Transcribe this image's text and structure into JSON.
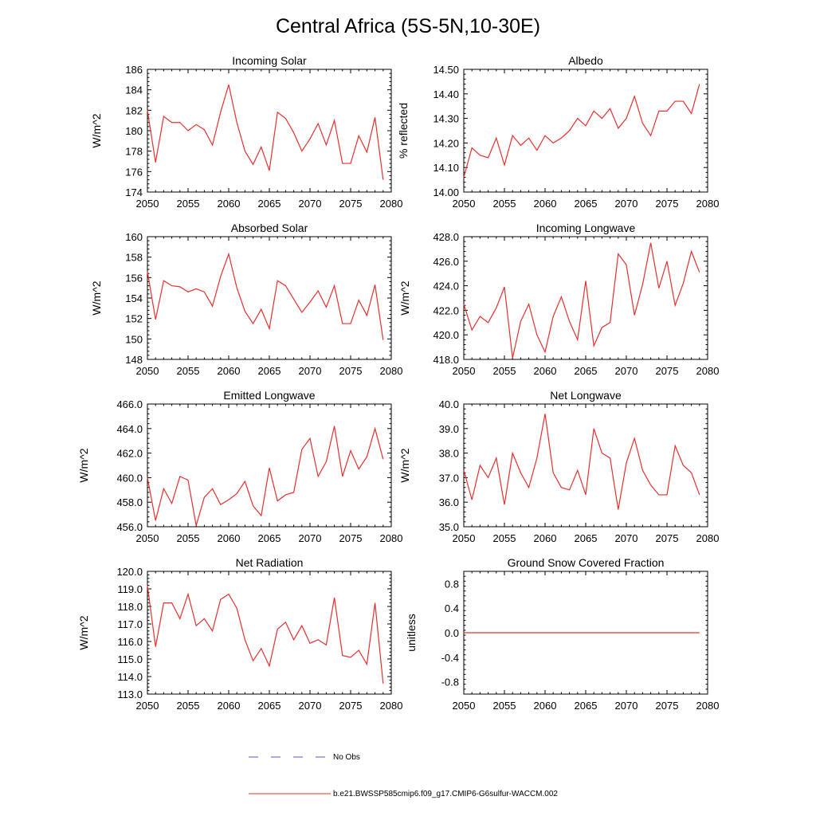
{
  "figure": {
    "title": "Central Africa (5S-5N,10-30E)",
    "legend": [
      {
        "label": "No Obs",
        "color": "#5555cc",
        "dash": true
      },
      {
        "label": "b.e21.BWSSP585cmip6.f09_g17.CMIP6-G6sulfur-WACCM.002",
        "color": "#e6302f",
        "dash": false
      }
    ]
  },
  "chart_data": [
    {
      "type": "line",
      "title": "Incoming Solar",
      "ylabel": "W/m^2",
      "xlim": [
        2050,
        2080
      ],
      "ylim": [
        174,
        186
      ],
      "xticks": [
        2050,
        2055,
        2060,
        2065,
        2070,
        2075,
        2080
      ],
      "yticks": [
        "174",
        "176",
        "178",
        "180",
        "182",
        "184",
        "186"
      ],
      "series": [
        {
          "color": "#e6302f",
          "x_start": 2050,
          "values": [
            182.0,
            176.9,
            181.4,
            180.8,
            180.8,
            180.0,
            180.6,
            180.1,
            178.6,
            181.8,
            184.5,
            180.8,
            178.0,
            176.7,
            178.4,
            176.1,
            181.8,
            181.2,
            179.8,
            178.0,
            179.2,
            180.7,
            178.6,
            181.0,
            176.8,
            176.8,
            179.5,
            177.9,
            181.3,
            175.2
          ]
        }
      ]
    },
    {
      "type": "line",
      "title": "Albedo",
      "ylabel": "% reflected",
      "xlim": [
        2050,
        2080
      ],
      "ylim": [
        14.0,
        14.5
      ],
      "xticks": [
        2050,
        2055,
        2060,
        2065,
        2070,
        2075,
        2080
      ],
      "yticks": [
        "14.00",
        "14.10",
        "14.20",
        "14.30",
        "14.40",
        "14.50"
      ],
      "series": [
        {
          "color": "#e6302f",
          "x_start": 2050,
          "values": [
            14.06,
            14.18,
            14.15,
            14.14,
            14.22,
            14.11,
            14.23,
            14.19,
            14.22,
            14.17,
            14.23,
            14.2,
            14.22,
            14.25,
            14.3,
            14.27,
            14.33,
            14.3,
            14.34,
            14.26,
            14.3,
            14.39,
            14.28,
            14.23,
            14.33,
            14.33,
            14.37,
            14.37,
            14.32,
            14.44
          ]
        }
      ]
    },
    {
      "type": "line",
      "title": "Absorbed Solar",
      "ylabel": "W/m^2",
      "xlim": [
        2050,
        2080
      ],
      "ylim": [
        148,
        160
      ],
      "xticks": [
        2050,
        2055,
        2060,
        2065,
        2070,
        2075,
        2080
      ],
      "yticks": [
        "148",
        "150",
        "152",
        "154",
        "156",
        "158",
        "160"
      ],
      "series": [
        {
          "color": "#e6302f",
          "x_start": 2050,
          "values": [
            156.6,
            151.9,
            155.7,
            155.2,
            155.1,
            154.6,
            154.9,
            154.6,
            153.2,
            156.1,
            158.3,
            155.0,
            152.7,
            151.5,
            152.9,
            151.0,
            155.7,
            155.2,
            153.9,
            152.6,
            153.6,
            154.7,
            153.1,
            155.2,
            151.5,
            151.5,
            153.8,
            152.3,
            155.3,
            149.9
          ]
        }
      ]
    },
    {
      "type": "line",
      "title": "Incoming Longwave",
      "ylabel": "W/m^2",
      "xlim": [
        2050,
        2080
      ],
      "ylim": [
        418.0,
        428.0
      ],
      "xticks": [
        2050,
        2055,
        2060,
        2065,
        2070,
        2075,
        2080
      ],
      "yticks": [
        "418.0",
        "420.0",
        "422.0",
        "424.0",
        "426.0",
        "428.0"
      ],
      "series": [
        {
          "color": "#e6302f",
          "x_start": 2050,
          "values": [
            422.5,
            420.4,
            421.5,
            421.0,
            422.2,
            423.9,
            418.1,
            421.1,
            422.5,
            420.0,
            418.6,
            421.5,
            423.1,
            421.1,
            419.6,
            424.4,
            419.1,
            420.6,
            421.0,
            426.6,
            425.7,
            421.6,
            424.1,
            427.5,
            423.8,
            426.0,
            422.4,
            424.2,
            426.8,
            425.1
          ]
        }
      ]
    },
    {
      "type": "line",
      "title": "Emitted Longwave",
      "ylabel": "W/m^2",
      "xlim": [
        2050,
        2080
      ],
      "ylim": [
        456.0,
        466.0
      ],
      "xticks": [
        2050,
        2055,
        2060,
        2065,
        2070,
        2075,
        2080
      ],
      "yticks": [
        "456.0",
        "458.0",
        "460.0",
        "462.0",
        "464.0",
        "466.0"
      ],
      "series": [
        {
          "color": "#e6302f",
          "x_start": 2050,
          "values": [
            460.0,
            456.5,
            459.1,
            457.9,
            460.1,
            459.8,
            456.1,
            458.4,
            459.1,
            457.8,
            458.2,
            458.7,
            459.7,
            457.7,
            456.9,
            460.8,
            458.1,
            458.6,
            458.8,
            462.3,
            463.2,
            460.1,
            461.3,
            464.2,
            460.1,
            462.2,
            460.7,
            461.7,
            464.0,
            461.5
          ]
        }
      ]
    },
    {
      "type": "line",
      "title": "Net Longwave",
      "ylabel": "W/m^2",
      "xlim": [
        2050,
        2080
      ],
      "ylim": [
        35.0,
        40.0
      ],
      "xticks": [
        2050,
        2055,
        2060,
        2065,
        2070,
        2075,
        2080
      ],
      "yticks": [
        "35.0",
        "36.0",
        "37.0",
        "38.0",
        "39.0",
        "40.0"
      ],
      "series": [
        {
          "color": "#e6302f",
          "x_start": 2050,
          "values": [
            37.3,
            36.1,
            37.5,
            37.0,
            37.8,
            35.9,
            38.0,
            37.2,
            36.6,
            37.8,
            39.6,
            37.2,
            36.6,
            36.5,
            37.3,
            36.3,
            39.0,
            38.0,
            37.8,
            35.7,
            37.6,
            38.6,
            37.3,
            36.7,
            36.3,
            36.3,
            38.3,
            37.5,
            37.2,
            36.3
          ]
        }
      ]
    },
    {
      "type": "line",
      "title": "Net Radiation",
      "ylabel": "W/m^2",
      "xlim": [
        2050,
        2080
      ],
      "ylim": [
        113.0,
        120.0
      ],
      "xticks": [
        2050,
        2055,
        2060,
        2065,
        2070,
        2075,
        2080
      ],
      "yticks": [
        "113.0",
        "114.0",
        "115.0",
        "116.0",
        "117.0",
        "118.0",
        "119.0",
        "120.0"
      ],
      "series": [
        {
          "color": "#e6302f",
          "x_start": 2050,
          "values": [
            119.2,
            115.7,
            118.2,
            118.2,
            117.3,
            118.7,
            116.9,
            117.3,
            116.6,
            118.4,
            118.7,
            117.9,
            116.1,
            114.9,
            115.6,
            114.6,
            116.7,
            117.1,
            116.1,
            116.9,
            115.9,
            116.1,
            115.8,
            118.5,
            115.2,
            115.1,
            115.5,
            114.7,
            118.2,
            113.6
          ]
        }
      ]
    },
    {
      "type": "line",
      "title": "Ground Snow Covered Fraction",
      "ylabel": "unitless",
      "xlim": [
        2050,
        2080
      ],
      "ylim": [
        -1.0,
        1.0
      ],
      "xticks": [
        2050,
        2055,
        2060,
        2065,
        2070,
        2075,
        2080
      ],
      "yticks": [
        "-0.8",
        "-0.4",
        "0.0",
        "0.4",
        "0.8"
      ],
      "ytick_values": [
        -0.8,
        -0.4,
        0.0,
        0.4,
        0.8
      ],
      "series": [
        {
          "color": "#e6302f",
          "x_start": 2050,
          "values": [
            0,
            0,
            0,
            0,
            0,
            0,
            0,
            0,
            0,
            0,
            0,
            0,
            0,
            0,
            0,
            0,
            0,
            0,
            0,
            0,
            0,
            0,
            0,
            0,
            0,
            0,
            0,
            0,
            0,
            0
          ]
        }
      ]
    }
  ]
}
